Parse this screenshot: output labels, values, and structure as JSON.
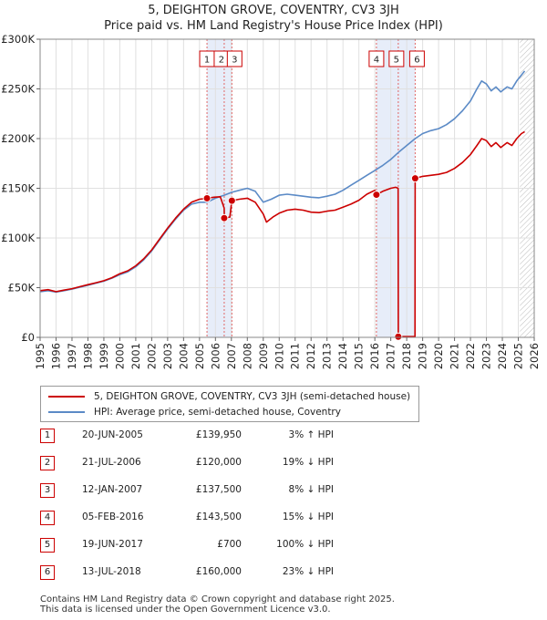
{
  "title": "5, DEIGHTON GROVE, COVENTRY, CV3 3JH",
  "subtitle": "Price paid vs. HM Land Registry's House Price Index (HPI)",
  "chart_data": {
    "type": "line",
    "xlim": [
      1995,
      2026
    ],
    "ylim": [
      0,
      300000
    ],
    "x_ticks": [
      1995,
      1996,
      1997,
      1998,
      1999,
      2000,
      2001,
      2002,
      2003,
      2004,
      2005,
      2006,
      2007,
      2008,
      2009,
      2010,
      2011,
      2012,
      2013,
      2014,
      2015,
      2016,
      2017,
      2018,
      2019,
      2020,
      2021,
      2022,
      2023,
      2024,
      2025,
      2026
    ],
    "y_ticks": [
      {
        "value": 0,
        "label": "£0"
      },
      {
        "value": 50000,
        "label": "£50K"
      },
      {
        "value": 100000,
        "label": "£100K"
      },
      {
        "value": 150000,
        "label": "£150K"
      },
      {
        "value": 200000,
        "label": "£200K"
      },
      {
        "value": 250000,
        "label": "£250K"
      },
      {
        "value": 300000,
        "label": "£300K"
      }
    ],
    "grid": true,
    "shaded_spans": [
      {
        "from": 2005.47,
        "to": 2007.03
      },
      {
        "from": 2016.1,
        "to": 2018.53
      }
    ],
    "future_hatch_from": 2025.1,
    "series": [
      {
        "name": "5, DEIGHTON GROVE, COVENTRY, CV3 3JH (semi-detached house)",
        "color": "#cc0000",
        "points": [
          [
            1995.0,
            47000
          ],
          [
            1995.5,
            48000
          ],
          [
            1996.0,
            46000
          ],
          [
            1996.5,
            47500
          ],
          [
            1997.0,
            49000
          ],
          [
            1997.5,
            51000
          ],
          [
            1998.0,
            53000
          ],
          [
            1998.5,
            55000
          ],
          [
            1999.0,
            57000
          ],
          [
            1999.5,
            60000
          ],
          [
            2000.0,
            64000
          ],
          [
            2000.5,
            67000
          ],
          [
            2001.0,
            72000
          ],
          [
            2001.5,
            79000
          ],
          [
            2002.0,
            88000
          ],
          [
            2002.5,
            99000
          ],
          [
            2003.0,
            110000
          ],
          [
            2003.5,
            120000
          ],
          [
            2004.0,
            129000
          ],
          [
            2004.5,
            136000
          ],
          [
            2005.0,
            139000
          ],
          [
            2005.47,
            139950
          ],
          [
            2005.9,
            141000
          ],
          [
            2006.3,
            141500
          ],
          [
            2006.55,
            130000
          ],
          [
            2006.56,
            120000
          ],
          [
            2006.9,
            121000
          ],
          [
            2007.03,
            137500
          ],
          [
            2007.5,
            139000
          ],
          [
            2008.0,
            140000
          ],
          [
            2008.5,
            136000
          ],
          [
            2009.0,
            124000
          ],
          [
            2009.2,
            116000
          ],
          [
            2009.6,
            121000
          ],
          [
            2010.0,
            125000
          ],
          [
            2010.5,
            128000
          ],
          [
            2011.0,
            129000
          ],
          [
            2011.5,
            128000
          ],
          [
            2012.0,
            126000
          ],
          [
            2012.5,
            125500
          ],
          [
            2013.0,
            127000
          ],
          [
            2013.5,
            128000
          ],
          [
            2014.0,
            131000
          ],
          [
            2014.5,
            134000
          ],
          [
            2015.0,
            138000
          ],
          [
            2015.5,
            144000
          ],
          [
            2016.0,
            148000
          ],
          [
            2016.1,
            143500
          ],
          [
            2016.5,
            147000
          ],
          [
            2017.0,
            150000
          ],
          [
            2017.3,
            151000
          ],
          [
            2017.46,
            150000
          ],
          [
            2017.47,
            700
          ],
          [
            2017.9,
            700
          ],
          [
            2018.52,
            700
          ],
          [
            2018.53,
            160000
          ],
          [
            2019.0,
            162000
          ],
          [
            2019.5,
            163000
          ],
          [
            2020.0,
            164000
          ],
          [
            2020.5,
            166000
          ],
          [
            2021.0,
            170000
          ],
          [
            2021.5,
            176000
          ],
          [
            2022.0,
            184000
          ],
          [
            2022.4,
            193000
          ],
          [
            2022.7,
            200000
          ],
          [
            2023.0,
            198000
          ],
          [
            2023.3,
            192000
          ],
          [
            2023.6,
            196000
          ],
          [
            2023.9,
            191000
          ],
          [
            2024.3,
            196000
          ],
          [
            2024.6,
            193000
          ],
          [
            2024.9,
            200000
          ],
          [
            2025.2,
            205000
          ],
          [
            2025.4,
            207000
          ]
        ]
      },
      {
        "name": "HPI: Average price, semi-detached house, Coventry",
        "color": "#5b8ac6",
        "points": [
          [
            1995.0,
            46000
          ],
          [
            1995.5,
            47000
          ],
          [
            1996.0,
            45500
          ],
          [
            1996.5,
            47000
          ],
          [
            1997.0,
            48500
          ],
          [
            1997.5,
            50500
          ],
          [
            1998.0,
            52500
          ],
          [
            1998.5,
            54500
          ],
          [
            1999.0,
            56500
          ],
          [
            1999.5,
            59500
          ],
          [
            2000.0,
            63000
          ],
          [
            2000.5,
            66000
          ],
          [
            2001.0,
            71000
          ],
          [
            2001.5,
            78000
          ],
          [
            2002.0,
            87000
          ],
          [
            2002.5,
            98000
          ],
          [
            2003.0,
            109000
          ],
          [
            2003.5,
            119000
          ],
          [
            2004.0,
            128000
          ],
          [
            2004.5,
            134000
          ],
          [
            2005.0,
            136000
          ],
          [
            2005.47,
            136000
          ],
          [
            2006.0,
            140000
          ],
          [
            2006.55,
            143000
          ],
          [
            2007.03,
            146000
          ],
          [
            2007.5,
            148000
          ],
          [
            2008.0,
            150000
          ],
          [
            2008.5,
            147000
          ],
          [
            2009.0,
            136000
          ],
          [
            2009.5,
            139000
          ],
          [
            2010.0,
            143000
          ],
          [
            2010.5,
            144000
          ],
          [
            2011.0,
            143000
          ],
          [
            2011.5,
            142000
          ],
          [
            2012.0,
            141000
          ],
          [
            2012.5,
            140500
          ],
          [
            2013.0,
            142000
          ],
          [
            2013.5,
            144000
          ],
          [
            2014.0,
            148000
          ],
          [
            2014.5,
            153000
          ],
          [
            2015.0,
            158000
          ],
          [
            2015.5,
            163000
          ],
          [
            2016.0,
            168000
          ],
          [
            2016.1,
            169000
          ],
          [
            2016.5,
            173000
          ],
          [
            2017.0,
            179000
          ],
          [
            2017.47,
            186000
          ],
          [
            2018.0,
            193000
          ],
          [
            2018.53,
            200000
          ],
          [
            2019.0,
            205000
          ],
          [
            2019.5,
            208000
          ],
          [
            2020.0,
            210000
          ],
          [
            2020.5,
            214000
          ],
          [
            2021.0,
            220000
          ],
          [
            2021.5,
            228000
          ],
          [
            2022.0,
            238000
          ],
          [
            2022.4,
            250000
          ],
          [
            2022.7,
            258000
          ],
          [
            2023.0,
            255000
          ],
          [
            2023.3,
            248000
          ],
          [
            2023.6,
            252000
          ],
          [
            2023.9,
            247000
          ],
          [
            2024.3,
            252000
          ],
          [
            2024.6,
            250000
          ],
          [
            2024.9,
            258000
          ],
          [
            2025.2,
            264000
          ],
          [
            2025.4,
            268000
          ]
        ]
      }
    ],
    "sales": [
      {
        "num": "1",
        "x": 2005.47,
        "price": 139950
      },
      {
        "num": "2",
        "x": 2006.55,
        "price": 120000
      },
      {
        "num": "3",
        "x": 2007.03,
        "price": 137500
      },
      {
        "num": "4",
        "x": 2016.1,
        "price": 143500
      },
      {
        "num": "5",
        "x": 2017.47,
        "price": 700
      },
      {
        "num": "6",
        "x": 2018.53,
        "price": 160000
      }
    ]
  },
  "legend": [
    {
      "label": "5, DEIGHTON GROVE, COVENTRY, CV3 3JH (semi-detached house)",
      "color": "#cc0000"
    },
    {
      "label": "HPI: Average price, semi-detached house, Coventry",
      "color": "#5b8ac6"
    }
  ],
  "sales_table": [
    {
      "num": "1",
      "date": "20-JUN-2005",
      "price": "£139,950",
      "pct": "3% ↑ HPI"
    },
    {
      "num": "2",
      "date": "21-JUL-2006",
      "price": "£120,000",
      "pct": "19% ↓ HPI"
    },
    {
      "num": "3",
      "date": "12-JAN-2007",
      "price": "£137,500",
      "pct": "8% ↓ HPI"
    },
    {
      "num": "4",
      "date": "05-FEB-2016",
      "price": "£143,500",
      "pct": "15% ↓ HPI"
    },
    {
      "num": "5",
      "date": "19-JUN-2017",
      "price": "£700",
      "pct": "100% ↓ HPI"
    },
    {
      "num": "6",
      "date": "13-JUL-2018",
      "price": "£160,000",
      "pct": "23% ↓ HPI"
    }
  ],
  "footer": {
    "line1": "Contains HM Land Registry data © Crown copyright and database right 2025.",
    "line2": "This data is licensed under the Open Government Licence v3.0."
  }
}
